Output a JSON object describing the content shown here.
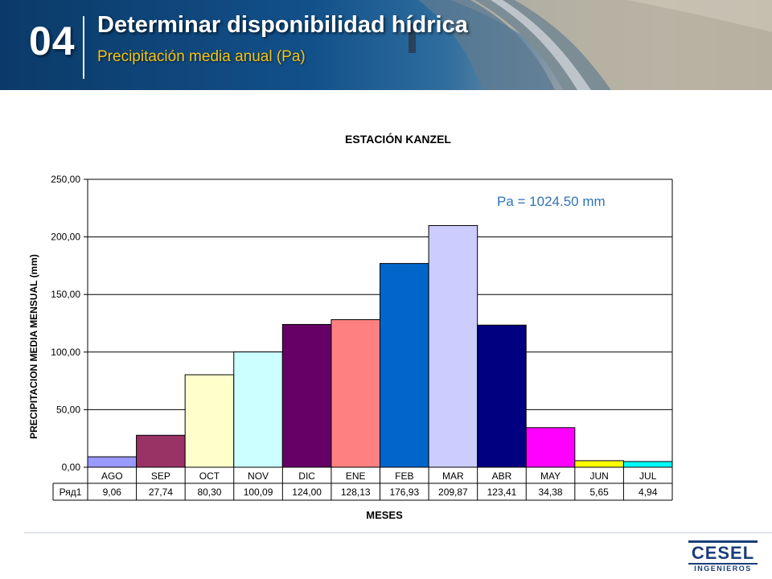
{
  "header": {
    "number": "04",
    "title": "Determinar disponibilidad hídrica",
    "subtitle": "Precipitación media anual (Pa)"
  },
  "chart_data": {
    "type": "bar",
    "title": "ESTACIÓN KANZEL",
    "xlabel": "MESES",
    "ylabel": "PRECIPITACION MEDIA MENSUAL (mm)",
    "ylim": [
      0,
      250
    ],
    "yticks": [
      "0,00",
      "50,00",
      "100,00",
      "150,00",
      "200,00",
      "250,00"
    ],
    "grid": true,
    "legend": "none",
    "annotation": "Pa = 1024.50 mm",
    "categories": [
      "AGO",
      "SEP",
      "OCT",
      "NOV",
      "DIC",
      "ENE",
      "FEB",
      "MAR",
      "ABR",
      "MAY",
      "JUN",
      "JUL"
    ],
    "values": [
      9.06,
      27.74,
      80.3,
      100.09,
      124.0,
      128.13,
      176.93,
      209.87,
      123.41,
      34.38,
      5.65,
      4.94
    ],
    "value_labels": [
      "9,06",
      "27,74",
      "80,30",
      "100,09",
      "124,00",
      "128,13",
      "176,93",
      "209,87",
      "123,41",
      "34,38",
      "5,65",
      "4,94"
    ],
    "colors": [
      "#9999ff",
      "#993366",
      "#ffffcc",
      "#ccffff",
      "#660066",
      "#ff8080",
      "#0066cc",
      "#ccccff",
      "#000080",
      "#ff00ff",
      "#ffff00",
      "#00ffff"
    ],
    "series": [
      {
        "name": "Ряд1"
      }
    ],
    "table": true
  },
  "logo": {
    "name": "CESEL",
    "tagline": "INGENIEROS"
  }
}
